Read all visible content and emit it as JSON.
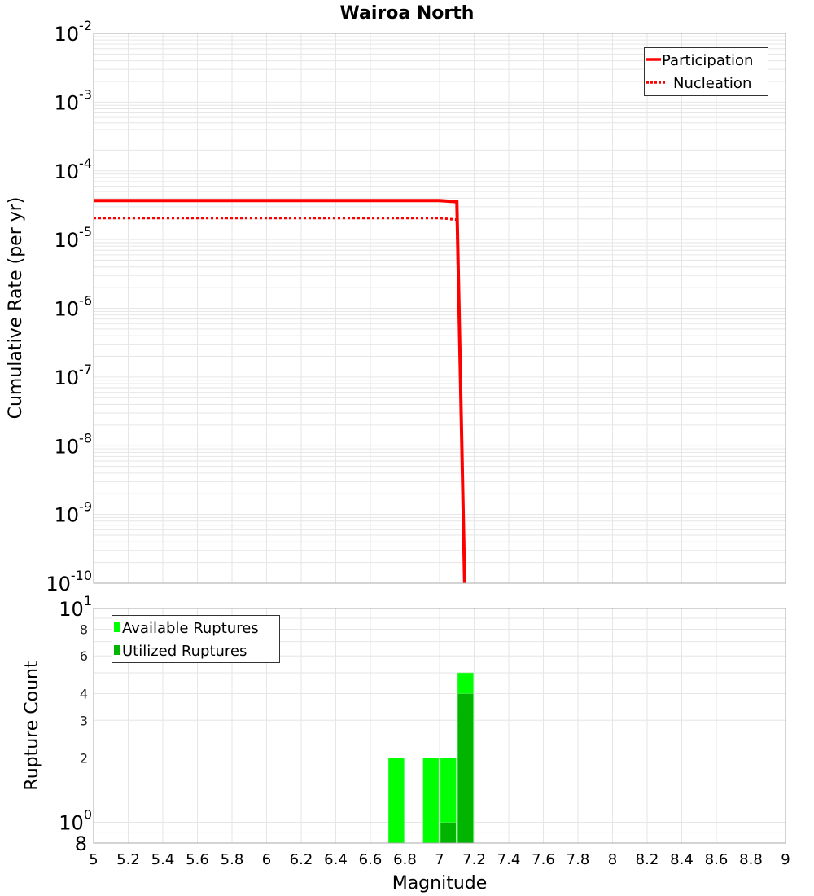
{
  "chart_data": [
    {
      "type": "line",
      "title": "Wairoa North",
      "xlabel": "Magnitude",
      "ylabel": "Cumulative Rate (per yr)",
      "xscale": "linear",
      "yscale": "log",
      "xlim": [
        5,
        9
      ],
      "ylim": [
        1e-10,
        0.01
      ],
      "grid": true,
      "legend_position": "top-right",
      "x": [
        5.0,
        7.0,
        7.1,
        7.145
      ],
      "series": [
        {
          "name": "Participation",
          "style": "solid",
          "color": "#ff0000",
          "values": [
            3.7e-05,
            3.7e-05,
            3.55e-05,
            1e-10
          ]
        },
        {
          "name": "Nucleation",
          "style": "dotted",
          "color": "#ff0000",
          "values": [
            2.05e-05,
            2.05e-05,
            1.95e-05,
            1e-10
          ]
        }
      ],
      "yticks": [
        {
          "value": 0.01,
          "base": "10",
          "exp": "-2"
        },
        {
          "value": 0.001,
          "base": "10",
          "exp": "-3"
        },
        {
          "value": 0.0001,
          "base": "10",
          "exp": "-4"
        },
        {
          "value": 1e-05,
          "base": "10",
          "exp": "-5"
        },
        {
          "value": 1e-06,
          "base": "10",
          "exp": "-6"
        },
        {
          "value": 1e-07,
          "base": "10",
          "exp": "-7"
        },
        {
          "value": 1e-08,
          "base": "10",
          "exp": "-8"
        },
        {
          "value": 1e-09,
          "base": "10",
          "exp": "-9"
        },
        {
          "value": 1e-10,
          "base": "10",
          "exp": "-10"
        }
      ]
    },
    {
      "type": "bar",
      "title": "",
      "xlabel": "Magnitude",
      "ylabel": "Rupture Count",
      "xscale": "linear",
      "yscale": "log",
      "xlim": [
        5,
        9
      ],
      "ylim": [
        0.8,
        10
      ],
      "grid": true,
      "legend_position": "top-left",
      "bin_width": 0.1,
      "categories": [
        6.75,
        6.95,
        7.05,
        7.15
      ],
      "series": [
        {
          "name": "Available Ruptures",
          "color": "#00ff00",
          "values": [
            2,
            2,
            2,
            5
          ]
        },
        {
          "name": "Utilized Ruptures",
          "color": "#00b400",
          "values": [
            0,
            0,
            1,
            4
          ]
        }
      ],
      "yticks": [
        {
          "value": 10,
          "base": "10",
          "exp": "1"
        },
        {
          "value": 8,
          "label": "8"
        },
        {
          "value": 6,
          "label": "6"
        },
        {
          "value": 4,
          "label": "4"
        },
        {
          "value": 3,
          "label": "3"
        },
        {
          "value": 2,
          "label": "2"
        },
        {
          "value": 1,
          "base": "10",
          "exp": "0"
        },
        {
          "value": 0.8,
          "label": "8",
          "big": true
        }
      ]
    }
  ],
  "xticks": [
    "5",
    "5.2",
    "5.4",
    "5.6",
    "5.8",
    "6",
    "6.2",
    "6.4",
    "6.6",
    "6.8",
    "7",
    "7.2",
    "7.4",
    "7.6",
    "7.8",
    "8",
    "8.2",
    "8.4",
    "8.6",
    "8.8",
    "9"
  ],
  "colors": {
    "grid": "#e6e6e6",
    "frame": "#a8a8a8",
    "legend_border": "#333333"
  }
}
